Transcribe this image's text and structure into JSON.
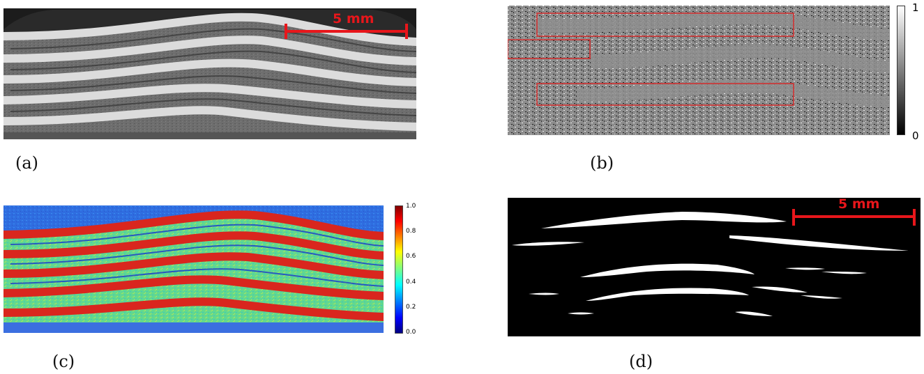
{
  "panels": [
    {
      "caption": "(a)",
      "scale_bar": "5 mm"
    },
    {
      "caption": "(b)",
      "colorbar": {
        "max_label": "1",
        "min_label": "0"
      }
    },
    {
      "caption": "(c)",
      "colorbar": {
        "ticks": [
          "1.0",
          "0.8",
          "0.6",
          "0.4",
          "0.2",
          "0.0"
        ]
      }
    },
    {
      "caption": "(d)",
      "scale_bar": "5 mm"
    }
  ],
  "colors": {
    "scale_bar": "#e8161b",
    "roi_box": "#d42a2a",
    "background_d": "#000000"
  }
}
